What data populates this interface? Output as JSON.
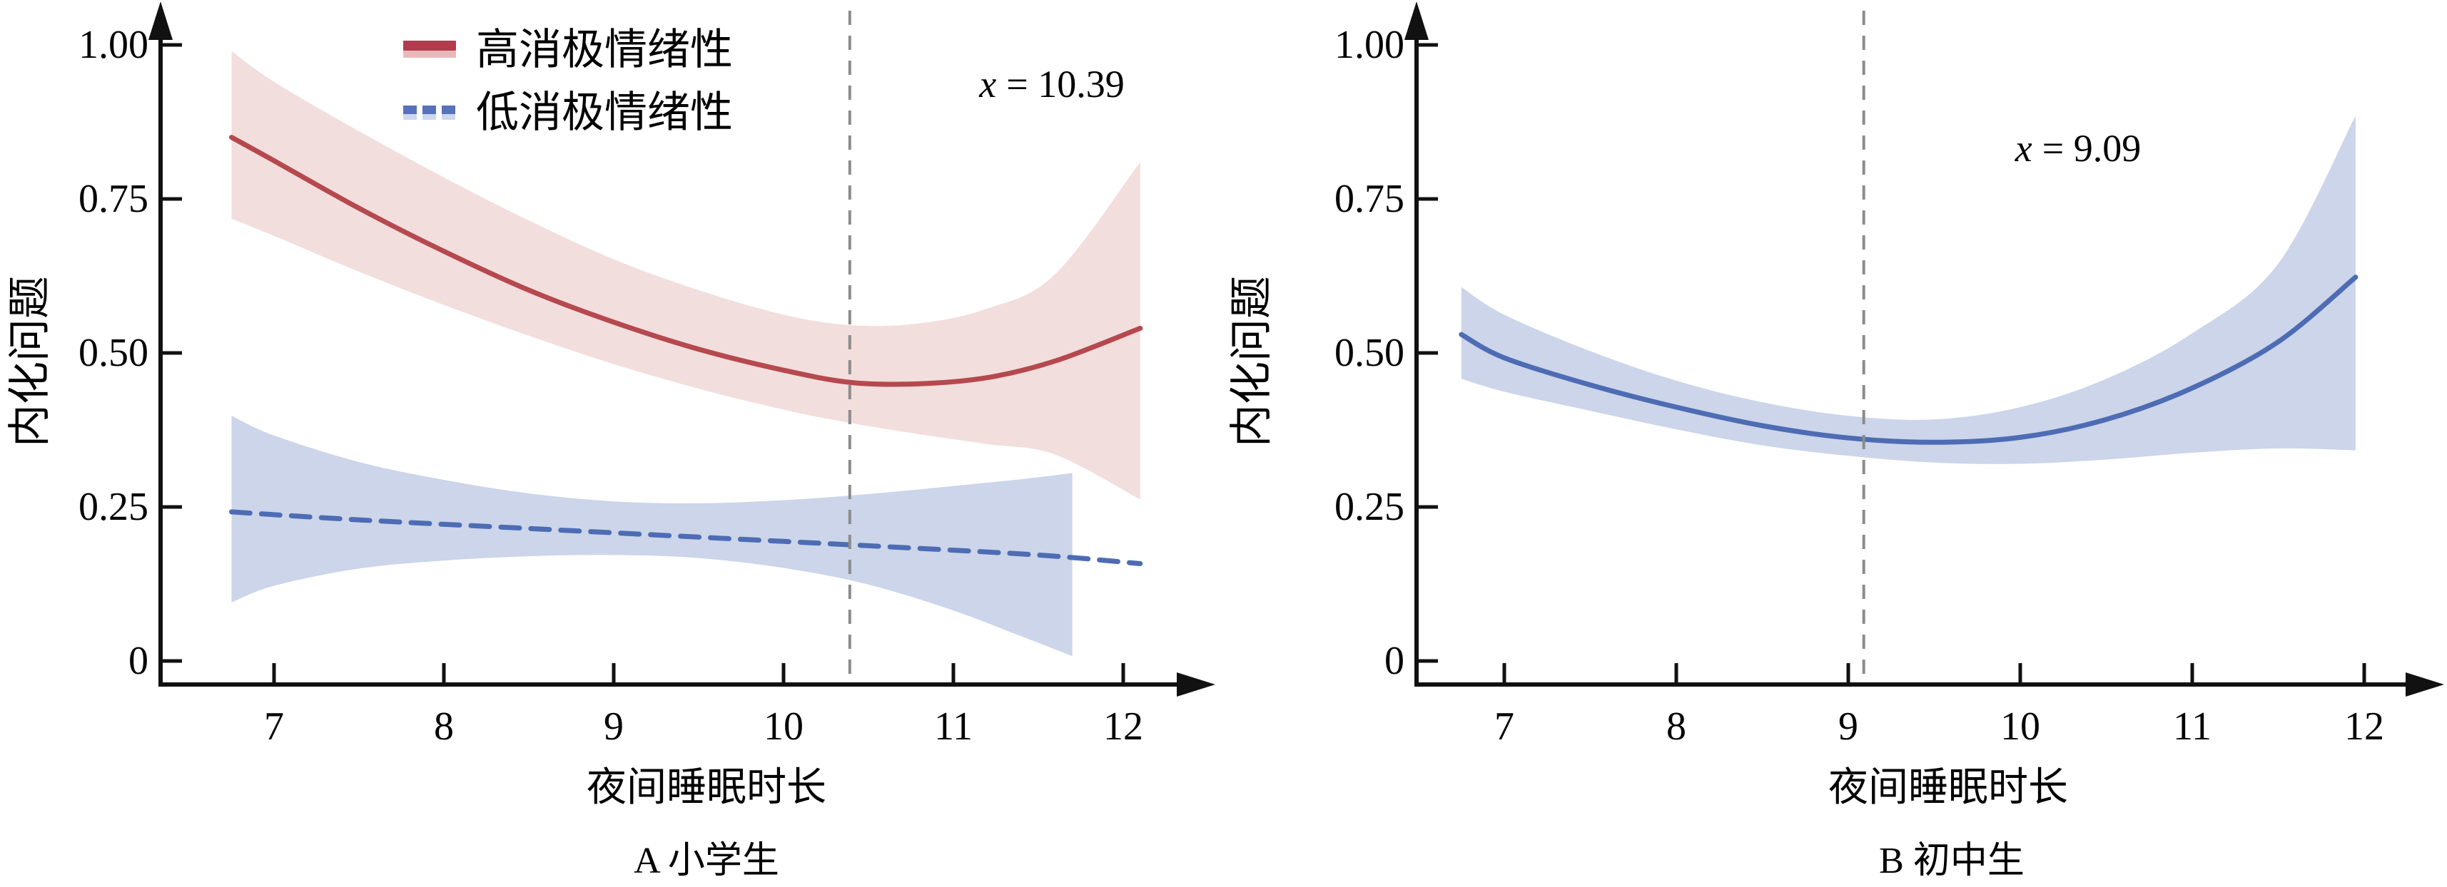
{
  "figure": {
    "background": "#ffffff",
    "axis_color": "#111111",
    "threshold_color": "#8c8c8c"
  },
  "chart_data": [
    {
      "id": "A",
      "type": "line",
      "caption": "A 小学生",
      "xlabel": "夜间睡眠时长",
      "ylabel": "内化问题",
      "xlim": [
        6.45,
        12.55
      ],
      "ylim": [
        0,
        1.05
      ],
      "x_ticks": [
        7,
        8,
        9,
        10,
        11,
        12
      ],
      "x_tick_labels": [
        "7",
        "8",
        "9",
        "10",
        "11",
        "12"
      ],
      "y_ticks": [
        0,
        0.25,
        0.5,
        0.75,
        1.0
      ],
      "y_tick_labels": [
        "0",
        "0.25",
        "0.50",
        "0.75",
        "1.00"
      ],
      "grid": false,
      "legend_position": "top-left-inside",
      "threshold": {
        "x": 10.39,
        "label": "x = 10.39",
        "var": "x",
        "rest": "= 10.39"
      },
      "legend": [
        {
          "label": "高消极情绪性",
          "style": "solid",
          "color": "#b23c4e",
          "band_color": "#e9b9ba"
        },
        {
          "label": "低消极情绪性",
          "style": "dashed",
          "color": "#5572bb",
          "band_color": "#cdd7ee"
        }
      ],
      "series": [
        {
          "name": "高消极情绪性",
          "style": "solid",
          "color": "#b5494f",
          "band_color": "#f2dedd",
          "x": [
            6.75,
            7.0,
            7.5,
            8.0,
            8.5,
            9.0,
            9.5,
            10.0,
            10.4,
            10.8,
            11.2,
            11.6,
            12.1
          ],
          "y": [
            0.85,
            0.812,
            0.735,
            0.665,
            0.602,
            0.55,
            0.506,
            0.472,
            0.452,
            0.45,
            0.46,
            0.487,
            0.54
          ],
          "band_x": [
            6.75,
            7.0,
            7.5,
            8.0,
            8.5,
            9.0,
            9.5,
            10.0,
            10.4,
            10.8,
            11.2,
            11.6,
            12.1
          ],
          "upper": [
            0.99,
            0.94,
            0.86,
            0.785,
            0.715,
            0.652,
            0.602,
            0.562,
            0.545,
            0.548,
            0.572,
            0.628,
            0.81
          ],
          "lower": [
            0.718,
            0.69,
            0.632,
            0.578,
            0.528,
            0.482,
            0.442,
            0.408,
            0.386,
            0.368,
            0.352,
            0.335,
            0.262
          ]
        },
        {
          "name": "低消极情绪性",
          "style": "dashed",
          "color": "#4d6cb4",
          "band_color": "#ccd5e9",
          "x": [
            6.75,
            7.5,
            8.5,
            9.5,
            10.5,
            11.5,
            12.1
          ],
          "y": [
            0.242,
            0.229,
            0.215,
            0.201,
            0.187,
            0.172,
            0.158
          ],
          "band_x": [
            6.75,
            7.0,
            7.5,
            8.0,
            8.5,
            9.0,
            9.5,
            10.0,
            10.5,
            11.0,
            11.4,
            11.7
          ],
          "upper": [
            0.398,
            0.366,
            0.323,
            0.294,
            0.272,
            0.259,
            0.256,
            0.261,
            0.271,
            0.284,
            0.295,
            0.305
          ],
          "lower": [
            0.095,
            0.122,
            0.15,
            0.163,
            0.17,
            0.172,
            0.167,
            0.151,
            0.124,
            0.082,
            0.04,
            0.008
          ]
        }
      ]
    },
    {
      "id": "B",
      "type": "line",
      "caption": "B 初中生",
      "xlabel": "夜间睡眠时长",
      "ylabel": "内化问题",
      "xlim": [
        6.45,
        12.55
      ],
      "ylim": [
        0,
        1.05
      ],
      "x_ticks": [
        7,
        8,
        9,
        10,
        11,
        12
      ],
      "x_tick_labels": [
        "7",
        "8",
        "9",
        "10",
        "11",
        "12"
      ],
      "y_ticks": [
        0,
        0.25,
        0.5,
        0.75,
        1.0
      ],
      "y_tick_labels": [
        "0",
        "0.25",
        "0.50",
        "0.75",
        "1.00"
      ],
      "grid": false,
      "legend_position": "none",
      "threshold": {
        "x": 9.09,
        "label": "x = 9.09",
        "var": "x",
        "rest": "= 9.09"
      },
      "legend": [],
      "series": [
        {
          "name": "series-1",
          "style": "solid",
          "color": "#4d6cb4",
          "band_color": "#ccd5e9",
          "x": [
            6.75,
            7.0,
            7.5,
            8.0,
            8.5,
            9.0,
            9.5,
            10.0,
            10.5,
            11.0,
            11.5,
            11.95
          ],
          "y": [
            0.53,
            0.492,
            0.448,
            0.412,
            0.382,
            0.362,
            0.355,
            0.363,
            0.392,
            0.443,
            0.518,
            0.623
          ],
          "band_x": [
            6.75,
            7.0,
            7.5,
            8.0,
            8.5,
            9.0,
            9.5,
            10.0,
            10.5,
            11.0,
            11.5,
            11.95
          ],
          "upper": [
            0.607,
            0.562,
            0.503,
            0.455,
            0.42,
            0.398,
            0.392,
            0.412,
            0.458,
            0.532,
            0.645,
            0.885
          ],
          "lower": [
            0.458,
            0.437,
            0.406,
            0.376,
            0.35,
            0.333,
            0.322,
            0.32,
            0.327,
            0.338,
            0.345,
            0.342
          ]
        }
      ]
    }
  ]
}
